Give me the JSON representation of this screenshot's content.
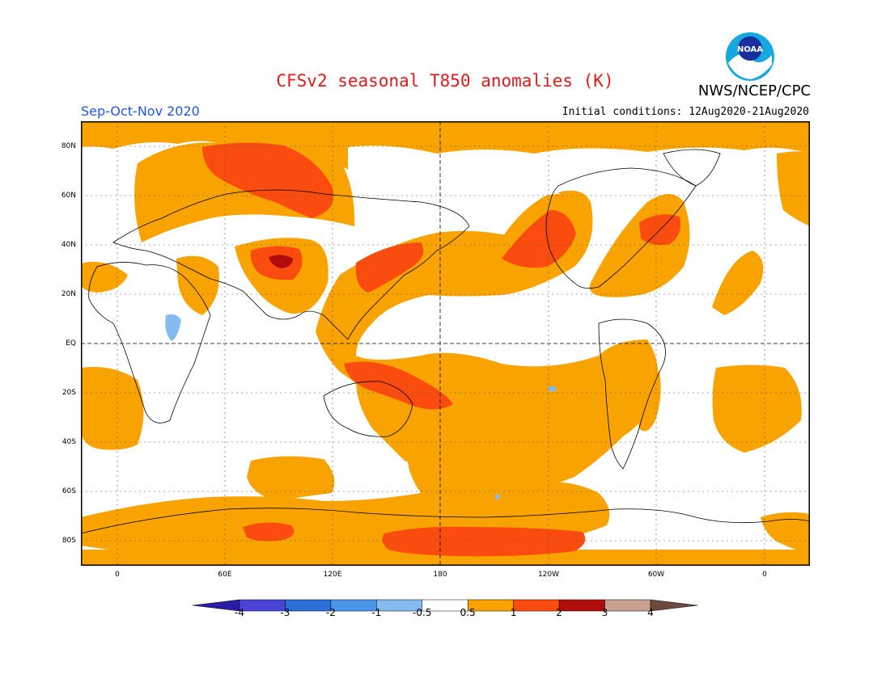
{
  "title": "CFSv2 seasonal T850 anomalies (K)",
  "organization": "NWS/NCEP/CPC",
  "logo_text": "NOAA",
  "season": "Sep-Oct-Nov 2020",
  "initial_conditions": "Initial conditions: 12Aug2020-21Aug2020",
  "lat_labels": [
    "80N",
    "60N",
    "40N",
    "20N",
    "EQ",
    "20S",
    "40S",
    "60S",
    "80S"
  ],
  "lon_labels": [
    "0",
    "60E",
    "120E",
    "180",
    "120W",
    "60W",
    "0"
  ],
  "colorbar": {
    "labels": [
      "-4",
      "-3",
      "-2",
      "-1",
      "-0.5",
      "0.5",
      "1",
      "2",
      "3",
      "4"
    ],
    "colors": [
      "#2b1ca8",
      "#4a44d6",
      "#2a6fd8",
      "#4a97ea",
      "#84bcf0",
      "#ffffff",
      "#f9a300",
      "#fb4c10",
      "#b00c0c",
      "#c9a090",
      "#6e4a3e"
    ]
  },
  "colors": {
    "warm_1": "#f9a300",
    "warm_2": "#fb4c10",
    "warm_3": "#b00c0c",
    "cool_1": "#84bcf0",
    "title_red": "#e01a1a",
    "season_blue": "#2255ee"
  }
}
